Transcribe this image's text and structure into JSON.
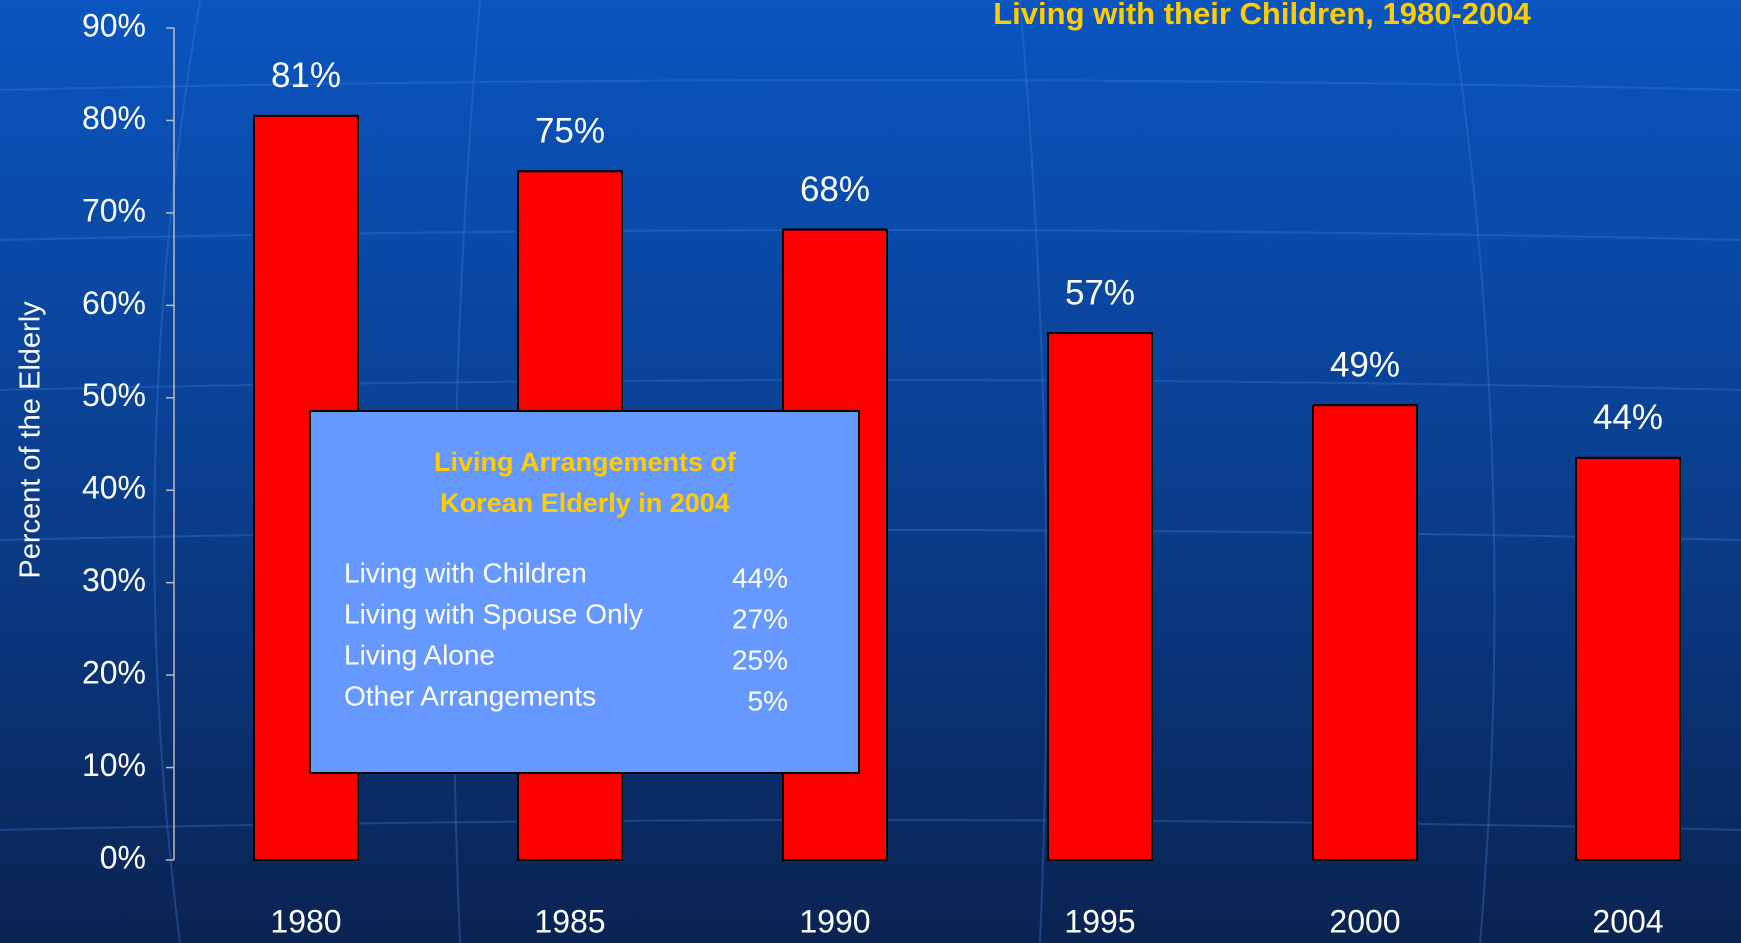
{
  "chart_data": {
    "type": "bar",
    "title": "Living with their Children, 1980-2004",
    "y_label": "Percent of the Elderly",
    "categories": [
      "1980",
      "1985",
      "1990",
      "1995",
      "2000",
      "2004"
    ],
    "values": [
      80.5,
      74.5,
      68.2,
      57,
      49.2,
      43.5
    ],
    "value_labels": [
      "81%",
      "75%",
      "68%",
      "57%",
      "49%",
      "44%"
    ],
    "color": "#ff0000",
    "ylim": [
      0,
      90
    ],
    "yticks": [
      {
        "value": 0,
        "label": "0%"
      },
      {
        "value": 10,
        "label": "10%"
      },
      {
        "value": 20,
        "label": "20%"
      },
      {
        "value": 30,
        "label": "30%"
      },
      {
        "value": 40,
        "label": "40%"
      },
      {
        "value": 50,
        "label": "50%"
      },
      {
        "value": 60,
        "label": "60%"
      },
      {
        "value": 70,
        "label": "70%"
      },
      {
        "value": 80,
        "label": "80%"
      },
      {
        "value": 90,
        "label": "90%"
      }
    ],
    "inset": {
      "title_lines": [
        "Living Arrangements of",
        "Korean Elderly in 2004"
      ],
      "rows": [
        {
          "label": "Living with Children",
          "value": "44%"
        },
        {
          "label": "Living with Spouse Only",
          "value": "27%"
        },
        {
          "label": "Living Alone",
          "value": "25%"
        },
        {
          "label": "Other Arrangements",
          "value": "5%"
        }
      ]
    }
  }
}
